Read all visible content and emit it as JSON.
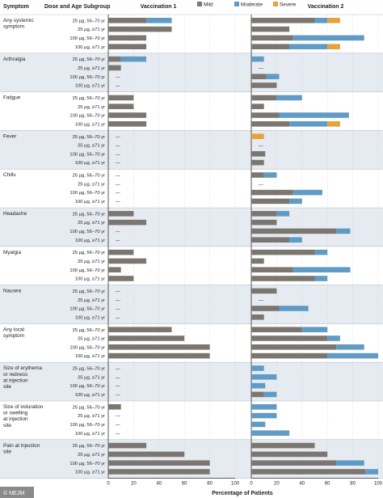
{
  "chart_data": {
    "type": "bar",
    "orientation": "horizontal",
    "stacked": true,
    "headers": {
      "symptom": "Symptom",
      "dose_group": "Dose and Age Subgroup",
      "panel_titles": [
        "Vaccination 1",
        "Vaccination 2"
      ]
    },
    "legend": [
      {
        "name": "Mild",
        "color": "#7b7670"
      },
      {
        "name": "Moderate",
        "color": "#5f9bc4"
      },
      {
        "name": "Severe",
        "color": "#e8a23a"
      }
    ],
    "legend_placement": "top-center",
    "xlabel": "Percentage of Patients",
    "xlim": [
      0,
      100
    ],
    "xticks": [
      "0",
      "20",
      "40",
      "60",
      "80",
      "100"
    ],
    "dash_label": "—",
    "groups": [
      "25 µg, 56–70 yr",
      "25 µg, ≥71 yr",
      "100 µg, 56–70 yr",
      "100 µg, ≥71 yr"
    ],
    "series_order": [
      "Mild",
      "Moderate",
      "Severe"
    ],
    "symptoms": [
      {
        "label": [
          "Any systemic",
          "symptom"
        ],
        "v1": [
          [
            30,
            20,
            0
          ],
          [
            50,
            0,
            0
          ],
          [
            30,
            0,
            0
          ],
          [
            30,
            0,
            0
          ]
        ],
        "v2": [
          [
            50,
            10,
            10
          ],
          [
            30,
            0,
            0
          ],
          [
            33,
            56,
            0
          ],
          [
            30,
            30,
            10
          ]
        ]
      },
      {
        "label": [
          "Arthralgia"
        ],
        "v1": [
          [
            10,
            20,
            0
          ],
          [
            10,
            0,
            0
          ],
          [
            0,
            0,
            0
          ],
          [
            0,
            0,
            0
          ]
        ],
        "v2": [
          [
            0,
            10,
            0
          ],
          [
            0,
            0,
            0
          ],
          [
            12,
            10,
            0
          ],
          [
            20,
            0,
            0
          ]
        ]
      },
      {
        "label": [
          "Fatigue"
        ],
        "v1": [
          [
            20,
            0,
            0
          ],
          [
            20,
            0,
            0
          ],
          [
            30,
            0,
            0
          ],
          [
            30,
            0,
            0
          ]
        ],
        "v2": [
          [
            20,
            20,
            0
          ],
          [
            10,
            0,
            0
          ],
          [
            22,
            55,
            0
          ],
          [
            30,
            30,
            10
          ]
        ]
      },
      {
        "label": [
          "Fever"
        ],
        "v1": [
          [
            0,
            0,
            0
          ],
          [
            0,
            0,
            0
          ],
          [
            0,
            0,
            0
          ],
          [
            0,
            0,
            0
          ]
        ],
        "v2": [
          [
            0,
            0,
            10
          ],
          [
            0,
            0,
            0
          ],
          [
            11,
            0,
            0
          ],
          [
            10,
            0,
            0
          ]
        ]
      },
      {
        "label": [
          "Chills"
        ],
        "v1": [
          [
            0,
            0,
            0
          ],
          [
            0,
            0,
            0
          ],
          [
            0,
            0,
            0
          ],
          [
            0,
            0,
            0
          ]
        ],
        "v2": [
          [
            10,
            10,
            0
          ],
          [
            0,
            0,
            0
          ],
          [
            33,
            23,
            0
          ],
          [
            30,
            10,
            0
          ]
        ]
      },
      {
        "label": [
          "Headache"
        ],
        "v1": [
          [
            20,
            0,
            0
          ],
          [
            30,
            0,
            0
          ],
          [
            0,
            0,
            0
          ],
          [
            0,
            0,
            0
          ]
        ],
        "v2": [
          [
            20,
            10,
            0
          ],
          [
            20,
            0,
            0
          ],
          [
            67,
            11,
            0
          ],
          [
            30,
            10,
            0
          ]
        ]
      },
      {
        "label": [
          "Myalgia"
        ],
        "v1": [
          [
            20,
            0,
            0
          ],
          [
            30,
            0,
            0
          ],
          [
            10,
            0,
            0
          ],
          [
            20,
            0,
            0
          ]
        ],
        "v2": [
          [
            50,
            10,
            0
          ],
          [
            10,
            0,
            0
          ],
          [
            33,
            45,
            0
          ],
          [
            50,
            10,
            0
          ]
        ]
      },
      {
        "label": [
          "Nausea"
        ],
        "v1": [
          [
            0,
            0,
            0
          ],
          [
            0,
            0,
            0
          ],
          [
            0,
            0,
            0
          ],
          [
            0,
            0,
            0
          ]
        ],
        "v2": [
          [
            20,
            0,
            0
          ],
          [
            0,
            0,
            0
          ],
          [
            22,
            23,
            0
          ],
          [
            10,
            0,
            0
          ]
        ]
      },
      {
        "label": [
          "Any local",
          "symptom"
        ],
        "v1": [
          [
            50,
            0,
            0
          ],
          [
            60,
            0,
            0
          ],
          [
            80,
            0,
            0
          ],
          [
            80,
            0,
            0
          ]
        ],
        "v2": [
          [
            40,
            20,
            0
          ],
          [
            60,
            10,
            0
          ],
          [
            67,
            22,
            0
          ],
          [
            60,
            40,
            0
          ]
        ]
      },
      {
        "label": [
          "Size of erythema",
          "or redness",
          "at injection",
          "site"
        ],
        "v1": [
          [
            0,
            0,
            0
          ],
          [
            0,
            0,
            0
          ],
          [
            0,
            0,
            0
          ],
          [
            0,
            0,
            0
          ]
        ],
        "v2": [
          [
            0,
            10,
            0
          ],
          [
            0,
            20,
            0
          ],
          [
            0,
            11,
            0
          ],
          [
            10,
            10,
            0
          ]
        ]
      },
      {
        "label": [
          "Size of induration",
          "or swelling",
          "at injection",
          "site"
        ],
        "v1": [
          [
            10,
            0,
            0
          ],
          [
            0,
            0,
            0
          ],
          [
            0,
            0,
            0
          ],
          [
            0,
            0,
            0
          ]
        ],
        "v2": [
          [
            0,
            20,
            0
          ],
          [
            0,
            20,
            0
          ],
          [
            0,
            11,
            0
          ],
          [
            0,
            30,
            0
          ]
        ]
      },
      {
        "label": [
          "Pain at injection",
          "site"
        ],
        "v1": [
          [
            30,
            0,
            0
          ],
          [
            60,
            0,
            0
          ],
          [
            80,
            0,
            0
          ],
          [
            80,
            0,
            0
          ]
        ],
        "v2": [
          [
            50,
            0,
            0
          ],
          [
            60,
            0,
            0
          ],
          [
            67,
            22,
            0
          ],
          [
            90,
            10,
            0
          ]
        ]
      }
    ]
  },
  "watermark": "© NEJM"
}
